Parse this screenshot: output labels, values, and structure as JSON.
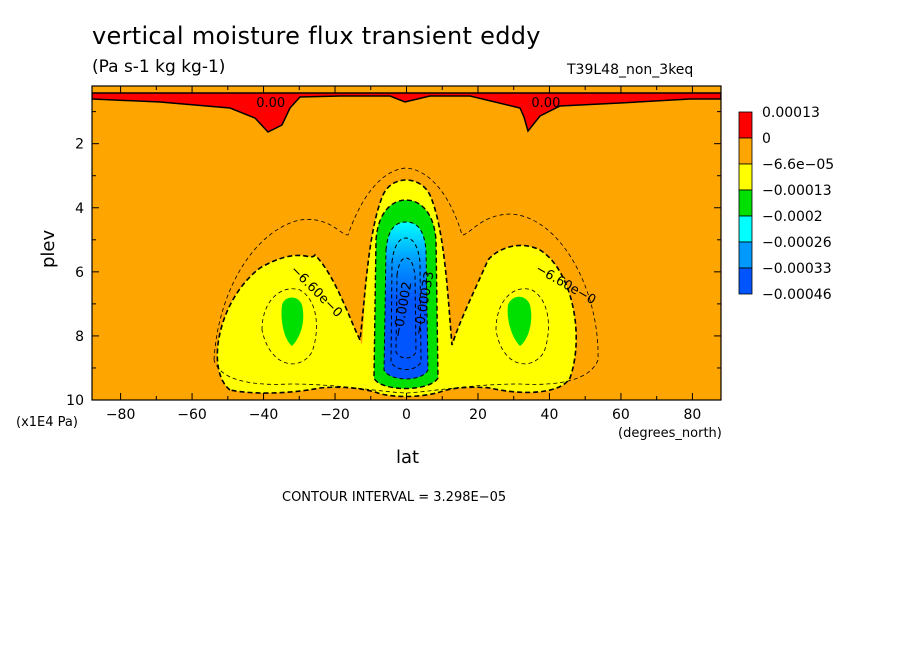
{
  "chart_data": {
    "type": "contour",
    "title": "vertical moisture flux transient eddy",
    "units": "(Pa s-1 kg kg-1)",
    "run_id": "T39L48_non_3keq",
    "xlabel": "lat",
    "xunit": "(degrees_north)",
    "ylabel": "plev",
    "yunit": "(x1E4 Pa)",
    "xlim": [
      -88,
      88
    ],
    "ylim": [
      0.2,
      10
    ],
    "y_inverted": true,
    "x_ticks": [
      -80,
      -60,
      -40,
      -20,
      0,
      20,
      40,
      60,
      80
    ],
    "x_tick_labels": [
      "−80",
      "−60",
      "−40",
      "−20",
      "0",
      "20",
      "40",
      "60",
      "80"
    ],
    "y_ticks": [
      2,
      4,
      6,
      8,
      10
    ],
    "y_tick_labels": [
      "2",
      "4",
      "6",
      "8",
      "10"
    ],
    "legend": {
      "position": "right",
      "entries": [
        {
          "label": "0.00013",
          "color": "#ff0000"
        },
        {
          "label": "0",
          "color": "#ffa500"
        },
        {
          "label": "−6.6e−05",
          "color": "#ffff00"
        },
        {
          "label": "−0.00013",
          "color": "#00e000"
        },
        {
          "label": "−0.0002",
          "color": "#00ffff"
        },
        {
          "label": "−0.00026",
          "color": "#0099ff"
        },
        {
          "label": "−0.00033",
          "color": "#0055ff"
        },
        {
          "label": "−0.00046",
          "color": "#ffffff"
        }
      ]
    },
    "contour_labels": [
      {
        "text": "0.00",
        "lat": -38,
        "plev": 0.85
      },
      {
        "text": "0.00",
        "lat": 39,
        "plev": 0.85
      },
      {
        "text": "−6.60e−0",
        "lat": -26,
        "plev": 6.7
      },
      {
        "text": "−6.60e−0",
        "lat": 44,
        "plev": 6.5
      },
      {
        "text": "−0.0002",
        "lat": 0,
        "plev": 7.2
      },
      {
        "text": "−0.00033",
        "lat": 6,
        "plev": 7.0
      }
    ],
    "contour_interval": "CONTOUR INTERVAL = 3.298E−05"
  }
}
